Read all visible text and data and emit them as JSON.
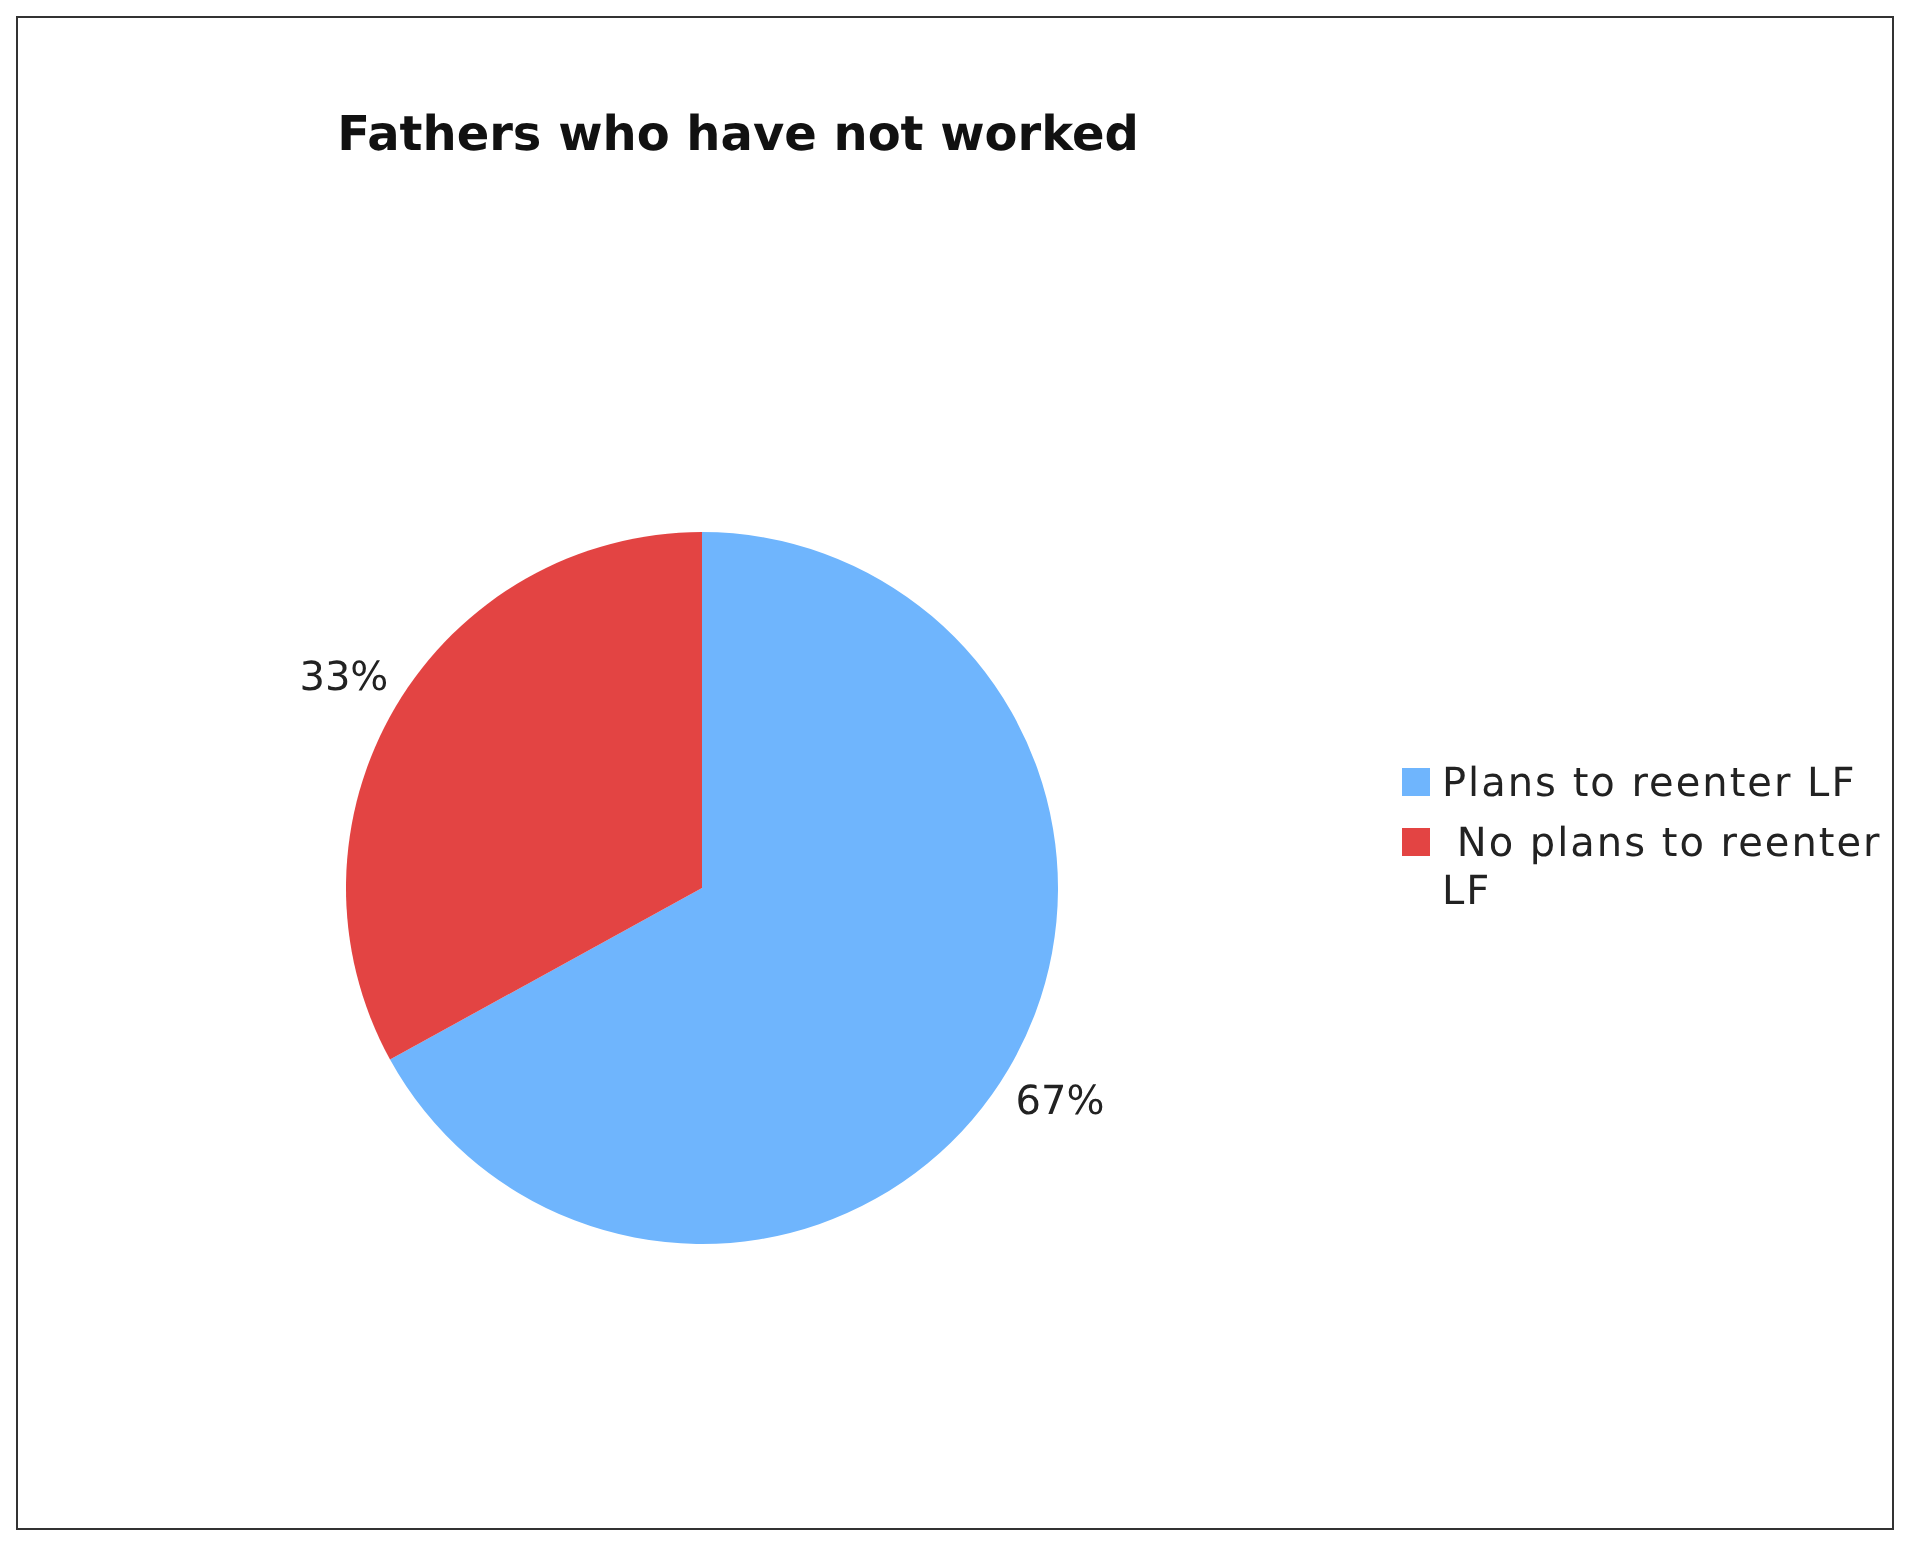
{
  "chart_data": {
    "type": "pie",
    "title": "Fathers who have not worked",
    "categories": [
      "Plans to reenter LF",
      " No plans to reenter LF"
    ],
    "values": [
      67,
      33
    ],
    "colors": [
      "#6fb5fd",
      "#e34443"
    ],
    "value_labels": [
      "67%",
      "33%"
    ],
    "legend": "right"
  }
}
